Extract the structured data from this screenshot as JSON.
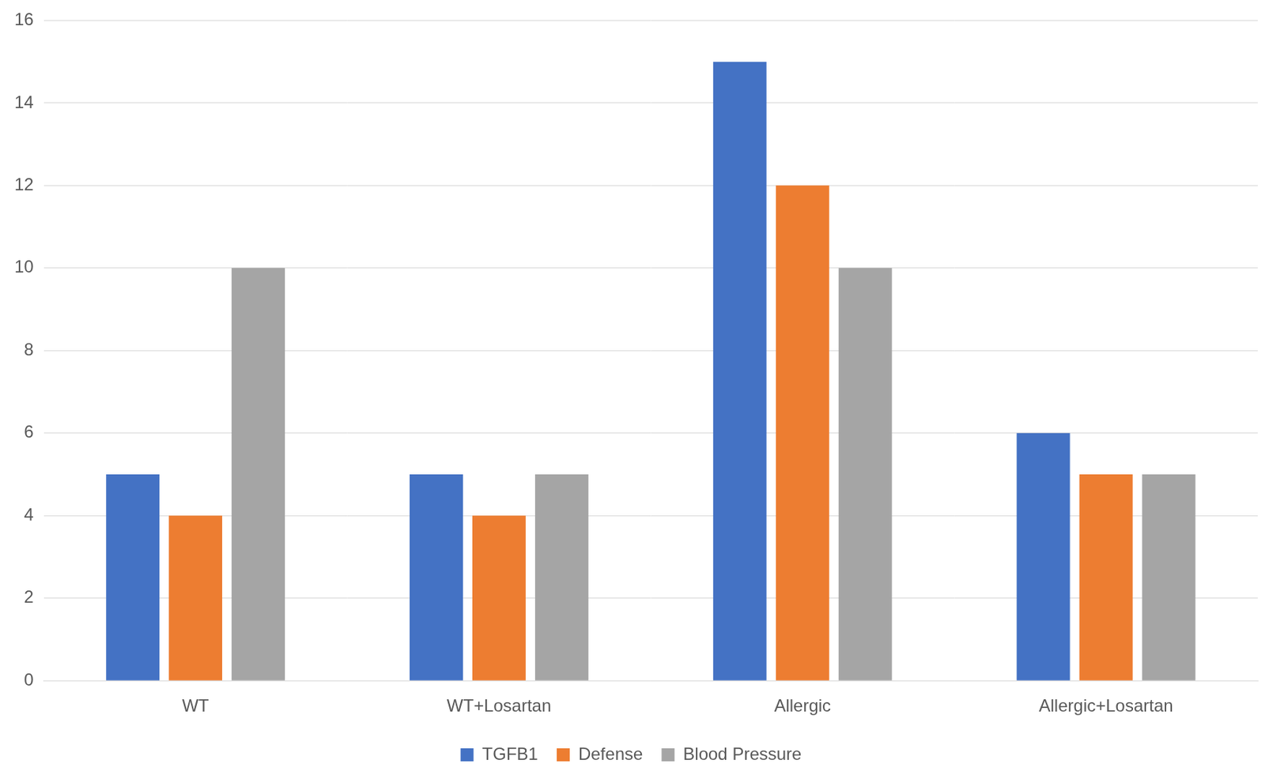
{
  "chart_data": {
    "type": "bar",
    "categories": [
      "WT",
      "WT+Losartan",
      "Allergic",
      "Allergic+Losartan"
    ],
    "series": [
      {
        "name": "TGFB1",
        "color": "#4472c4",
        "values": [
          5,
          5,
          15,
          6
        ]
      },
      {
        "name": "Defense",
        "color": "#ed7d31",
        "values": [
          4,
          4,
          12,
          5
        ]
      },
      {
        "name": "Blood Pressure",
        "color": "#a5a5a5",
        "values": [
          10,
          5,
          10,
          5
        ]
      }
    ],
    "ylim": [
      0,
      16
    ],
    "yticks": [
      0,
      2,
      4,
      6,
      8,
      10,
      12,
      14,
      16
    ],
    "grid": true,
    "legend": "bottom"
  }
}
